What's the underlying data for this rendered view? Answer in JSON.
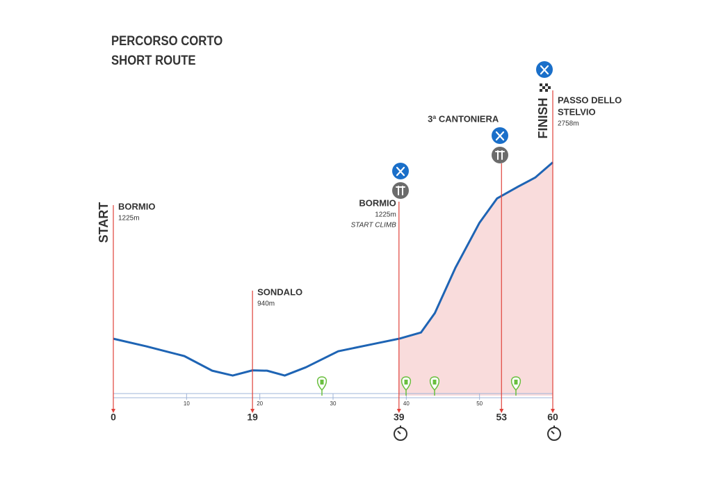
{
  "chart_data": {
    "type": "line",
    "title": [
      "PERCORSO CORTO",
      "SHORT ROUTE"
    ],
    "x": [
      0,
      4.5,
      9.7,
      13.5,
      16.3,
      19,
      21,
      23.4,
      26.3,
      30.7,
      35.8,
      39,
      42,
      43.9,
      46.7,
      50,
      52.4,
      55.3,
      57.6,
      60
    ],
    "values": [
      1225,
      1159,
      1074,
      947,
      905,
      950,
      947,
      905,
      977,
      1116,
      1183,
      1225,
      1279,
      1448,
      1841,
      2234,
      2445,
      2548,
      2626,
      2758
    ],
    "color": "#1e64b4",
    "fill_color": "#f9dcdc",
    "xlim": [
      0,
      60
    ],
    "ylim": [
      700,
      2900
    ],
    "xticks": [
      10,
      20,
      30,
      40,
      50
    ],
    "waypoints": [
      {
        "km": 0,
        "tag": "START",
        "name": [
          "BORMIO"
        ],
        "elevation": "1225m"
      },
      {
        "km": 19,
        "name": [
          "SONDALO"
        ],
        "elevation": "940m"
      },
      {
        "km": 39,
        "name": [
          "BORMIO"
        ],
        "elevation": "1225m",
        "note": "START CLIMB"
      },
      {
        "km": 53,
        "name": [
          "3ª CANTONIERA"
        ]
      },
      {
        "km": 60,
        "tag": "FINISH",
        "name": [
          "PASSO DELLO",
          "STELVIO"
        ],
        "elevation": "2758m"
      }
    ]
  }
}
